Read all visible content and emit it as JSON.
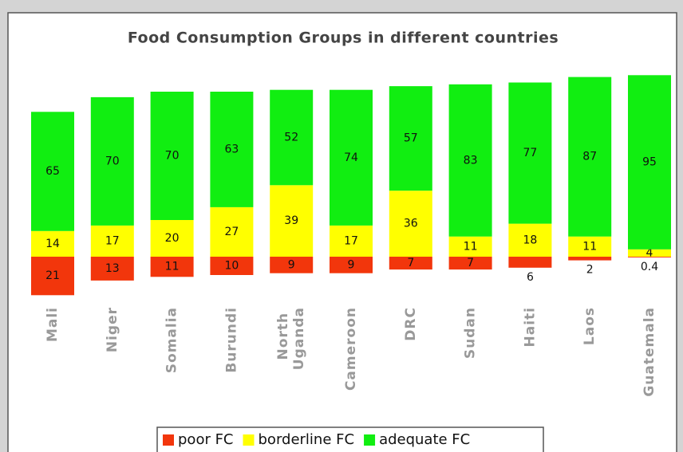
{
  "chart_data": {
    "type": "diverging-stacked-bar",
    "title": "Food Consumption Groups in different countries",
    "categories": [
      "Mali",
      "Niger",
      "Somalia",
      "Burundi",
      "North Uganda",
      "Cameroon",
      "DRC",
      "Sudan",
      "Haiti",
      "Laos",
      "Guatemala"
    ],
    "series": [
      {
        "name": "poor FC",
        "color": "#f2360c",
        "values": [
          21,
          13,
          11,
          10,
          9,
          9,
          7,
          7,
          6,
          2,
          0.4
        ]
      },
      {
        "name": "borderline FC",
        "color": "#ffff00",
        "values": [
          14,
          17,
          20,
          27,
          39,
          17,
          36,
          11,
          18,
          11,
          4
        ]
      },
      {
        "name": "adequate FC",
        "color": "#11ee11",
        "values": [
          65,
          70,
          70,
          63,
          52,
          74,
          57,
          83,
          77,
          87,
          95
        ]
      }
    ],
    "legend": "bottom"
  }
}
